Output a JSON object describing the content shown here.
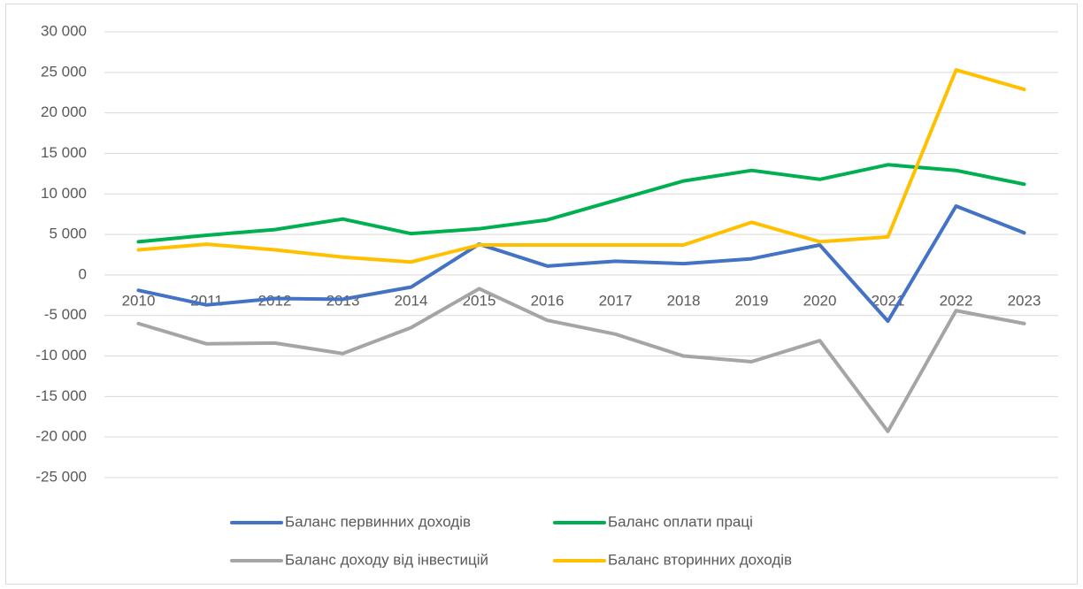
{
  "chart_data": {
    "type": "line",
    "categories": [
      "2010",
      "2011",
      "2012",
      "2013",
      "2014",
      "2015",
      "2016",
      "2017",
      "2018",
      "2019",
      "2020",
      "2021",
      "2022",
      "2023"
    ],
    "series": [
      {
        "name": "Баланс первинних доходів",
        "color": "#4472c4",
        "values": [
          -1900,
          -3700,
          -2900,
          -3000,
          -1500,
          3800,
          1100,
          1700,
          1400,
          2000,
          3700,
          -5700,
          8500,
          5200
        ]
      },
      {
        "name": "Баланс оплати праці",
        "color": "#00b050",
        "values": [
          4100,
          4900,
          5600,
          6900,
          5100,
          5700,
          6800,
          9200,
          11600,
          12900,
          11800,
          13600,
          12900,
          11200
        ]
      },
      {
        "name": "Баланс доходу від інвестицій",
        "color": "#a5a5a5",
        "values": [
          -6000,
          -8500,
          -8400,
          -9700,
          -6500,
          -1700,
          -5600,
          -7300,
          -10000,
          -10700,
          -8100,
          -19300,
          -4400,
          -6000
        ]
      },
      {
        "name": "Баланс вторинних доходів",
        "color": "#ffc000",
        "values": [
          3100,
          3800,
          3100,
          2200,
          1600,
          3700,
          3700,
          3700,
          3700,
          6500,
          4100,
          4700,
          25300,
          22900
        ]
      }
    ],
    "ylim": [
      -25000,
      30000
    ],
    "yticks": [
      {
        "value": -25000,
        "label": "-25 000"
      },
      {
        "value": -20000,
        "label": "-20 000"
      },
      {
        "value": -15000,
        "label": "-15 000"
      },
      {
        "value": -10000,
        "label": "-10 000"
      },
      {
        "value": -5000,
        "label": "-5 000"
      },
      0,
      {
        "value": 5000,
        "label": "5 000"
      },
      {
        "value": 10000,
        "label": "10 000"
      },
      {
        "value": 15000,
        "label": "15 000"
      },
      {
        "value": 20000,
        "label": "20 000"
      },
      {
        "value": 25000,
        "label": "25 000"
      },
      {
        "value": 30000,
        "label": "30 000"
      }
    ],
    "grid": true,
    "legend": "bottom"
  }
}
